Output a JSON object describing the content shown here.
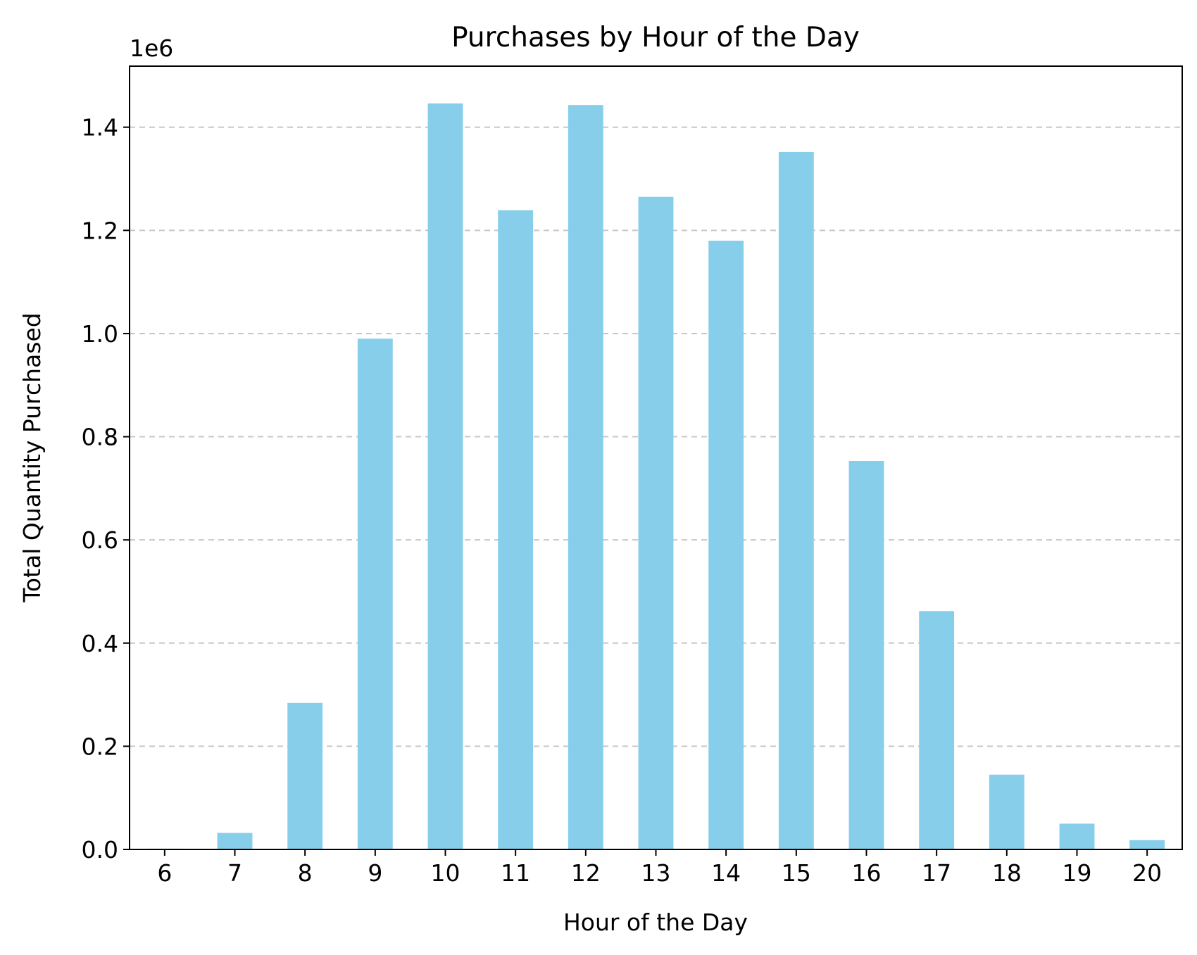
{
  "chart_data": {
    "type": "bar",
    "title": "Purchases by Hour of the Day",
    "xlabel": "Hour of the Day",
    "ylabel": "Total Quantity Purchased",
    "y_offset_label": "1e6",
    "categories": [
      "6",
      "7",
      "8",
      "9",
      "10",
      "11",
      "12",
      "13",
      "14",
      "15",
      "16",
      "17",
      "18",
      "19",
      "20"
    ],
    "values": [
      1500,
      32000,
      284000,
      990000,
      1446000,
      1239000,
      1443000,
      1265000,
      1180000,
      1352000,
      753000,
      462000,
      145000,
      50000,
      18000
    ],
    "y_ticks": [
      "0.0",
      "0.2",
      "0.4",
      "0.6",
      "0.8",
      "1.0",
      "1.2",
      "1.4"
    ],
    "y_tick_values": [
      0,
      200000,
      400000,
      600000,
      800000,
      1000000,
      1200000,
      1400000
    ],
    "ylim": [
      0,
      1518300
    ],
    "grid": "y-dashed",
    "bar_color": "#87CEEB",
    "grid_color": "#c8c8c8"
  }
}
